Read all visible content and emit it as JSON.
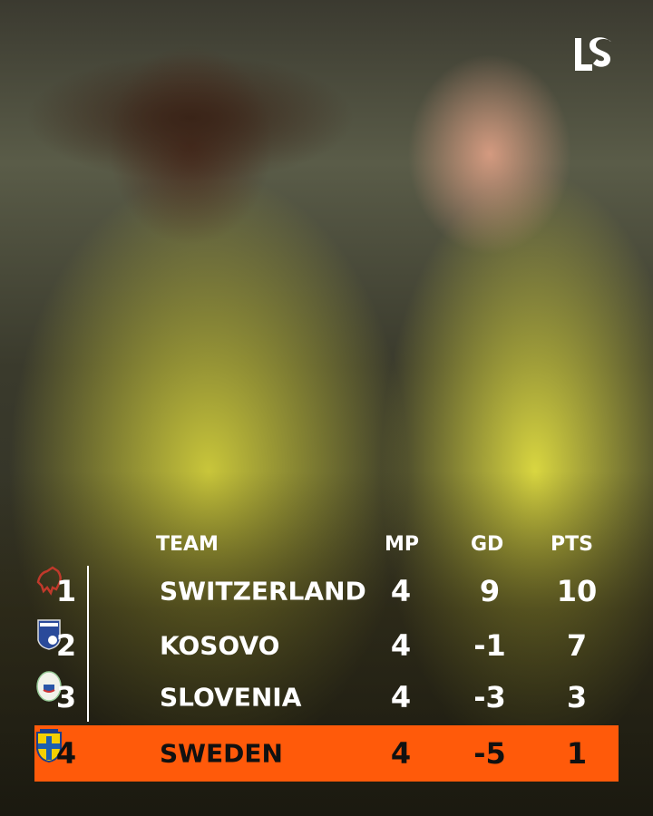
{
  "brand": {
    "logo": "LS"
  },
  "table": {
    "headers": {
      "team": "TEAM",
      "mp": "MP",
      "gd": "GD",
      "pts": "PTS"
    },
    "rows": [
      {
        "rank": "1",
        "team": "SWITZERLAND",
        "mp": "4",
        "gd": "9",
        "pts": "10",
        "crest": "switzerland-crest-icon",
        "highlighted": false
      },
      {
        "rank": "2",
        "team": "KOSOVO",
        "mp": "4",
        "gd": "-1",
        "pts": "7",
        "crest": "kosovo-crest-icon",
        "highlighted": false
      },
      {
        "rank": "3",
        "team": "SLOVENIA",
        "mp": "4",
        "gd": "-3",
        "pts": "3",
        "crest": "slovenia-crest-icon",
        "highlighted": false
      },
      {
        "rank": "4",
        "team": "SWEDEN",
        "mp": "4",
        "gd": "-5",
        "pts": "1",
        "crest": "sweden-crest-icon",
        "highlighted": true
      }
    ],
    "highlight_color": "#ff5a0a"
  }
}
